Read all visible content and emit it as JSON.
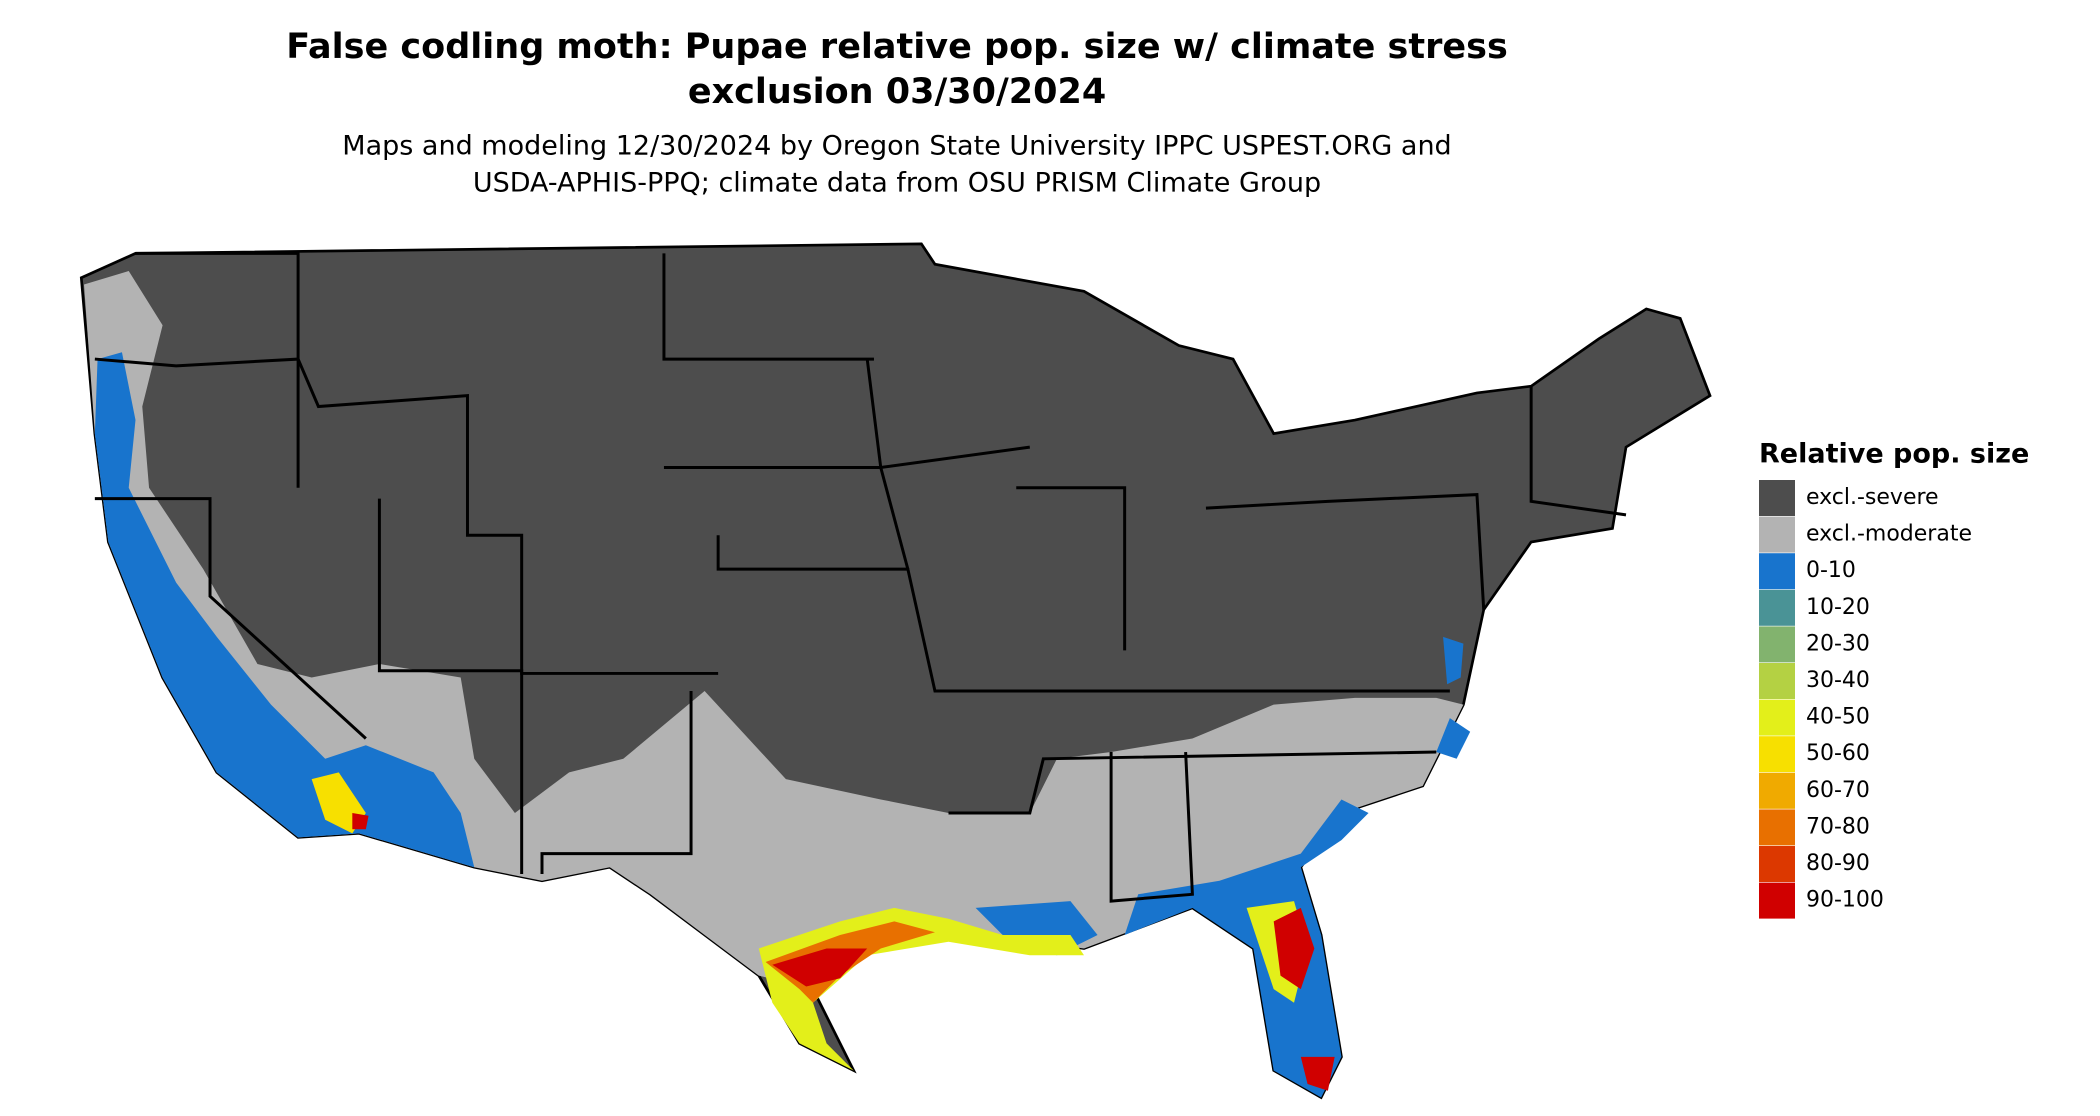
{
  "header": {
    "title": [
      "False codling moth: Pupae relative pop. size w/ climate stress",
      "exclusion 03/30/2024"
    ],
    "subtitle": [
      "Maps and modeling 12/30/2024 by Oregon State University IPPC USPEST.ORG and",
      "USDA-APHIS-PPQ; climate data from OSU PRISM Climate Group"
    ]
  },
  "legend": {
    "title": "Relative pop. size",
    "items": [
      {
        "label": "excl.-severe",
        "color": "#4d4d4d"
      },
      {
        "label": "excl.-moderate",
        "color": "#b3b3b3"
      },
      {
        "label": "0-10",
        "color": "#1874cd"
      },
      {
        "label": "10-20",
        "color": "#4a9396"
      },
      {
        "label": "20-30",
        "color": "#82b36e"
      },
      {
        "label": "30-40",
        "color": "#b4d143"
      },
      {
        "label": "40-50",
        "color": "#e3ef1a"
      },
      {
        "label": "50-60",
        "color": "#f7e000"
      },
      {
        "label": "60-70",
        "color": "#f0aa00"
      },
      {
        "label": "70-80",
        "color": "#e87000"
      },
      {
        "label": "80-90",
        "color": "#dc3800"
      },
      {
        "label": "90-100",
        "color": "#d00000"
      }
    ]
  }
}
